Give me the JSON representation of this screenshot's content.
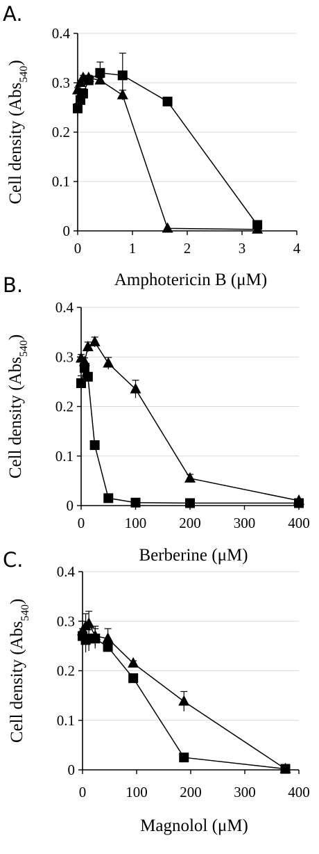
{
  "colors": {
    "axis": "#000000",
    "grid": "#d9d9d9",
    "marker": "#000000",
    "line": "#000000"
  },
  "chart_data": [
    {
      "type": "scatter",
      "panel_label": "A.",
      "title": "",
      "xlabel": "Amphotericin B (μM)",
      "ylabel_main": "Cell density (Abs",
      "ylabel_sub": "540",
      "ylabel_tail": ")",
      "xlim": [
        0,
        4
      ],
      "ylim": [
        0,
        0.4
      ],
      "x_ticks": [
        "0",
        "1",
        "2",
        "3",
        "4"
      ],
      "y_ticks": [
        "0",
        "0.1",
        "0.2",
        "0.3",
        "0.4"
      ],
      "grid": "horizontal",
      "series": [
        {
          "marker": "square",
          "x": [
            0,
            0.05,
            0.1,
            0.2,
            0.41,
            0.82,
            1.64,
            3.28
          ],
          "y": [
            0.248,
            0.265,
            0.278,
            0.305,
            0.32,
            0.315,
            0.262,
            0.012
          ],
          "err": [
            0.01,
            0.01,
            0.01,
            0.01,
            0.022,
            0.045,
            0.005,
            0.003
          ]
        },
        {
          "marker": "triangle",
          "x": [
            0,
            0.05,
            0.1,
            0.2,
            0.41,
            0.82,
            1.64,
            3.28
          ],
          "y": [
            0.285,
            0.3,
            0.31,
            0.31,
            0.305,
            0.275,
            0.005,
            0.003
          ],
          "err": [
            0.005,
            0.005,
            0.005,
            0.005,
            0.005,
            0.01,
            0.002,
            0.002
          ]
        }
      ]
    },
    {
      "type": "scatter",
      "panel_label": "B.",
      "title": "",
      "xlabel": "Berberine (μM)",
      "ylabel_main": "Cell density (Abs",
      "ylabel_sub": "540",
      "ylabel_tail": ")",
      "xlim": [
        0,
        400
      ],
      "ylim": [
        0,
        0.4
      ],
      "x_ticks": [
        "0",
        "100",
        "200",
        "300",
        "400"
      ],
      "y_ticks": [
        "0",
        "0.1",
        "0.2",
        "0.3",
        "0.4"
      ],
      "grid": "horizontal",
      "series": [
        {
          "marker": "square",
          "x": [
            0,
            6.25,
            12.5,
            25,
            50,
            100,
            200,
            400
          ],
          "y": [
            0.247,
            0.278,
            0.26,
            0.122,
            0.015,
            0.006,
            0.005,
            0.005
          ],
          "err": [
            0.015,
            0.01,
            0.008,
            0.005,
            0.003,
            0.002,
            0.002,
            0.002
          ]
        },
        {
          "marker": "triangle",
          "x": [
            0,
            6.25,
            12.5,
            25,
            50,
            100,
            200,
            400
          ],
          "y": [
            0.297,
            0.29,
            0.32,
            0.33,
            0.287,
            0.235,
            0.055,
            0.01
          ],
          "err": [
            0.008,
            0.008,
            0.01,
            0.01,
            0.012,
            0.018,
            0.008,
            0.003
          ]
        }
      ]
    },
    {
      "type": "scatter",
      "panel_label": "C.",
      "title": "",
      "xlabel": "Magnolol (μM)",
      "ylabel_main": "Cell density (Abs",
      "ylabel_sub": "540",
      "ylabel_tail": ")",
      "xlim": [
        0,
        400
      ],
      "ylim": [
        0,
        0.4
      ],
      "x_ticks": [
        "0",
        "100",
        "200",
        "300",
        "400"
      ],
      "y_ticks": [
        "0",
        "0.1",
        "0.2",
        "0.3",
        "0.4"
      ],
      "grid": "horizontal",
      "series": [
        {
          "marker": "square",
          "x": [
            0,
            5.9,
            11.7,
            23.4,
            46.9,
            93.8,
            187.5,
            375
          ],
          "y": [
            0.27,
            0.262,
            0.265,
            0.265,
            0.248,
            0.185,
            0.025,
            0.002
          ],
          "err": [
            0.015,
            0.025,
            0.025,
            0.02,
            0.01,
            0.005,
            0.003,
            0.002
          ]
        },
        {
          "marker": "triangle",
          "x": [
            0,
            5.9,
            11.7,
            23.4,
            46.9,
            93.8,
            187.5,
            375
          ],
          "y": [
            0.28,
            0.29,
            0.295,
            0.27,
            0.265,
            0.215,
            0.138,
            0.002
          ],
          "err": [
            0.02,
            0.025,
            0.025,
            0.02,
            0.02,
            0.005,
            0.02,
            0.002
          ]
        }
      ]
    }
  ]
}
